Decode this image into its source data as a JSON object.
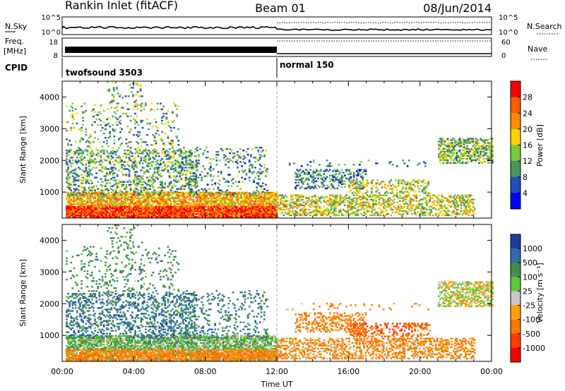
{
  "header": {
    "station": "Rankin Inlet (fitACF)",
    "beam": "Beam 01",
    "date": "08/Jun/2014"
  },
  "noise_panel": {
    "left_label": "N.Sky",
    "left_ticks": [
      "10^5",
      "10^0"
    ],
    "right_label": "N.Search",
    "right_ticks": [
      "10^5",
      "10^0"
    ]
  },
  "freq_panel": {
    "left_label_top": "Freq.",
    "left_label_bottom": "[MHz]",
    "left_ticks": [
      "18",
      "8"
    ],
    "right_label": "Nave",
    "right_ticks": [
      "60",
      "0"
    ]
  },
  "cpid": {
    "label": "CPID",
    "segments": [
      {
        "name": "twofsound 3503",
        "start_hour": 0,
        "end_hour": 12
      },
      {
        "name": "normal 150",
        "start_hour": 12,
        "end_hour": 24
      }
    ]
  },
  "power_colorbar": {
    "title": "Power [dB]",
    "ticks": [
      "28",
      "24",
      "20",
      "16",
      "12",
      "8",
      "4"
    ],
    "colors": [
      "#ff0000",
      "#ff5a00",
      "#ff8c00",
      "#ffd200",
      "#7dc83c",
      "#46965a",
      "#1e50b4",
      "#0000ff"
    ]
  },
  "velocity_colorbar": {
    "title": "Velocity [m s⁻¹]",
    "ticks": [
      "1000",
      "500",
      "100",
      "25",
      "-25",
      "-100",
      "-500",
      "-1000"
    ],
    "colors": [
      "#1e3ca0",
      "#2d6eaa",
      "#468c50",
      "#5ac83c",
      "#c8c8c8",
      "#ffa000",
      "#ff7800",
      "#ff3c00",
      "#ff0000"
    ]
  },
  "chart_data": [
    {
      "type": "heatmap",
      "xlabel": "Time UT",
      "ylabel": "Slant Range [km]",
      "colorbar_label": "Power [dB]",
      "x_ticks": [
        "00:00",
        "04:00",
        "08:00",
        "12:00",
        "16:00",
        "20:00",
        "00:00"
      ],
      "y_ticks": [
        "1000",
        "2000",
        "3000",
        "4000"
      ],
      "xlim_hours": [
        0,
        24
      ],
      "ylim_km": [
        180,
        4500
      ],
      "clim_db": [
        0,
        30
      ],
      "scatter_regions": [
        {
          "t0": 0.2,
          "t1": 12.0,
          "r0": 200,
          "r1": 1000,
          "mean": 18,
          "dens": 0.75
        },
        {
          "t0": 0.2,
          "t1": 12.0,
          "r0": 200,
          "r1": 550,
          "mean": 26,
          "dens": 0.8
        },
        {
          "t0": 0.2,
          "t1": 7.5,
          "r0": 900,
          "r1": 2300,
          "mean": 9,
          "dens": 0.3
        },
        {
          "t0": 0.2,
          "t1": 6.5,
          "r0": 2200,
          "r1": 3800,
          "mean": 10,
          "dens": 0.12
        },
        {
          "t0": 2.5,
          "t1": 4.5,
          "r0": 3600,
          "r1": 4500,
          "mean": 10,
          "dens": 0.1
        },
        {
          "t0": 6.5,
          "t1": 11.5,
          "r0": 900,
          "r1": 2400,
          "mean": 8,
          "dens": 0.15
        },
        {
          "t0": 12.0,
          "t1": 23.0,
          "r0": 250,
          "r1": 900,
          "mean": 14,
          "dens": 0.45
        },
        {
          "t0": 13.0,
          "t1": 17.0,
          "r0": 1100,
          "r1": 1700,
          "mean": 7,
          "dens": 0.35
        },
        {
          "t0": 16.0,
          "t1": 20.5,
          "r0": 950,
          "r1": 1400,
          "mean": 13,
          "dens": 0.3
        },
        {
          "t0": 12.5,
          "t1": 20.5,
          "r0": 1800,
          "r1": 2000,
          "mean": 6,
          "dens": 0.08
        },
        {
          "t0": 21.0,
          "t1": 24.0,
          "r0": 1900,
          "r1": 2700,
          "mean": 11,
          "dens": 0.55
        }
      ]
    },
    {
      "type": "heatmap",
      "xlabel": "Time UT",
      "ylabel": "Slant Range [km]",
      "colorbar_label": "Velocity [m s⁻¹]",
      "x_ticks": [
        "00:00",
        "04:00",
        "08:00",
        "12:00",
        "16:00",
        "20:00",
        "00:00"
      ],
      "y_ticks": [
        "1000",
        "2000",
        "3000",
        "4000"
      ],
      "xlim_hours": [
        0,
        24
      ],
      "ylim_km": [
        180,
        4500
      ],
      "clim_ms": [
        -1000,
        1000
      ],
      "scatter_regions": [
        {
          "t0": 0.2,
          "t1": 12.0,
          "r0": 200,
          "r1": 1000,
          "mean": 80,
          "dens": 0.75
        },
        {
          "t0": 0.2,
          "t1": 12.0,
          "r0": 200,
          "r1": 550,
          "mean": -150,
          "dens": 0.8
        },
        {
          "t0": 0.2,
          "t1": 7.5,
          "r0": 900,
          "r1": 2300,
          "mean": 600,
          "dens": 0.3
        },
        {
          "t0": 0.2,
          "t1": 6.5,
          "r0": 2200,
          "r1": 3800,
          "mean": 300,
          "dens": 0.12
        },
        {
          "t0": 2.5,
          "t1": 4.5,
          "r0": 3600,
          "r1": 4500,
          "mean": 200,
          "dens": 0.1
        },
        {
          "t0": 6.5,
          "t1": 11.5,
          "r0": 900,
          "r1": 2400,
          "mean": 500,
          "dens": 0.15
        },
        {
          "t0": 12.0,
          "t1": 23.0,
          "r0": 250,
          "r1": 900,
          "mean": -120,
          "dens": 0.45
        },
        {
          "t0": 13.0,
          "t1": 17.0,
          "r0": 1100,
          "r1": 1700,
          "mean": -200,
          "dens": 0.35
        },
        {
          "t0": 16.0,
          "t1": 20.5,
          "r0": 950,
          "r1": 1400,
          "mean": -500,
          "dens": 0.3
        },
        {
          "t0": 12.5,
          "t1": 20.5,
          "r0": 1800,
          "r1": 2000,
          "mean": -150,
          "dens": 0.08
        },
        {
          "t0": 21.0,
          "t1": 24.0,
          "r0": 1900,
          "r1": 2700,
          "mean": 0,
          "dens": 0.55
        }
      ]
    }
  ]
}
